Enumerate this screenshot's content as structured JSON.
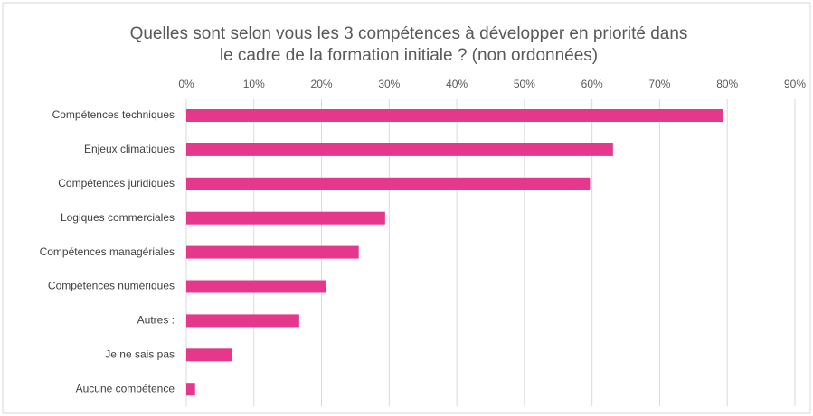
{
  "chart_data": {
    "type": "bar",
    "orientation": "horizontal",
    "title": [
      "Quelles sont selon vous les 3 compétences à développer en priorité dans",
      "le cadre de la formation initiale ? (non ordonnées)"
    ],
    "categories": [
      "Compétences techniques",
      "Enjeux climatiques",
      "Compétences juridiques",
      "Logiques commerciales",
      "Compétences managériales",
      "Compétences numériques",
      "Autres :",
      "Je ne sais pas",
      "Aucune compétence"
    ],
    "values": [
      79.4,
      63.1,
      59.7,
      29.4,
      25.5,
      20.6,
      16.7,
      6.7,
      1.3
    ],
    "color": "#e5388c",
    "xlim": [
      0,
      90
    ],
    "xticks": [
      {
        "value": 0,
        "label": "0%"
      },
      {
        "value": 10,
        "label": "10%"
      },
      {
        "value": 20,
        "label": "20%"
      },
      {
        "value": 30,
        "label": "30%"
      },
      {
        "value": 40,
        "label": "40%"
      },
      {
        "value": 50,
        "label": "50%"
      },
      {
        "value": 60,
        "label": "60%"
      },
      {
        "value": 70,
        "label": "70%"
      },
      {
        "value": 80,
        "label": "80%"
      },
      {
        "value": 90,
        "label": "90%"
      }
    ],
    "grid": true
  }
}
